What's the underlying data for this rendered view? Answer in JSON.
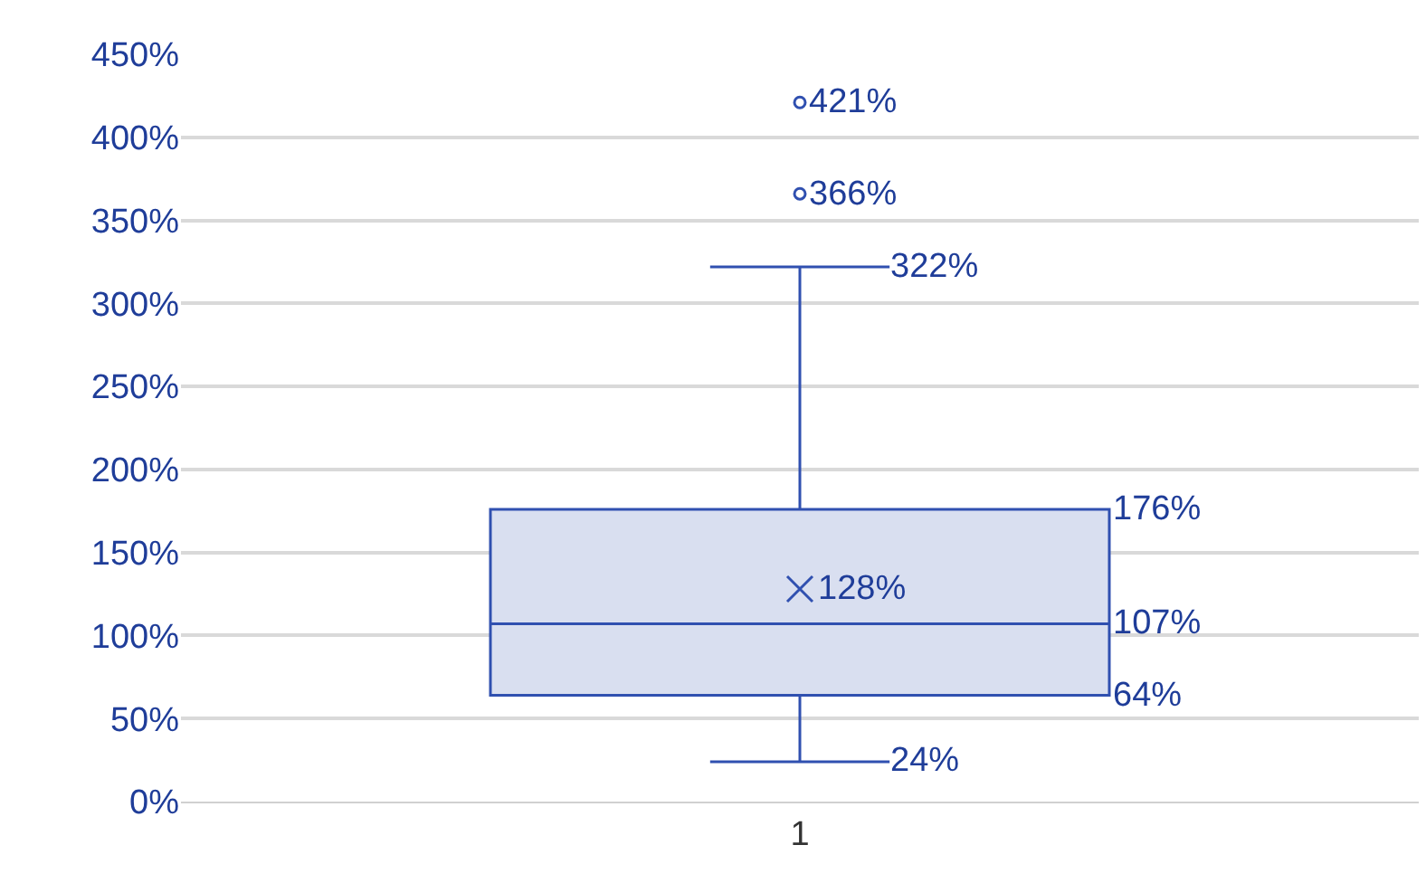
{
  "chart_data": {
    "type": "box",
    "categories": [
      "1"
    ],
    "series": [
      {
        "color": "#3050b0",
        "boxes": [
          {
            "low": 24,
            "q1": 64,
            "median": 107,
            "q3": 176,
            "high": 322,
            "mean": 128,
            "outliers": [
              366,
              421
            ]
          }
        ]
      }
    ],
    "ylim": [
      0,
      450
    ],
    "yticks": [
      {
        "value": 0,
        "label": "0%"
      },
      {
        "value": 50,
        "label": "50%"
      },
      {
        "value": 100,
        "label": "100%"
      },
      {
        "value": 150,
        "label": "150%"
      },
      {
        "value": 200,
        "label": "200%"
      },
      {
        "value": 250,
        "label": "250%"
      },
      {
        "value": 300,
        "label": "300%"
      },
      {
        "value": 350,
        "label": "350%"
      },
      {
        "value": 400,
        "label": "400%"
      },
      {
        "value": 450,
        "label": "450%"
      }
    ],
    "annotations": [
      "421%",
      "366%",
      "322%",
      "176%",
      "128%",
      "107%",
      "64%",
      "24%"
    ],
    "grid": "y"
  }
}
